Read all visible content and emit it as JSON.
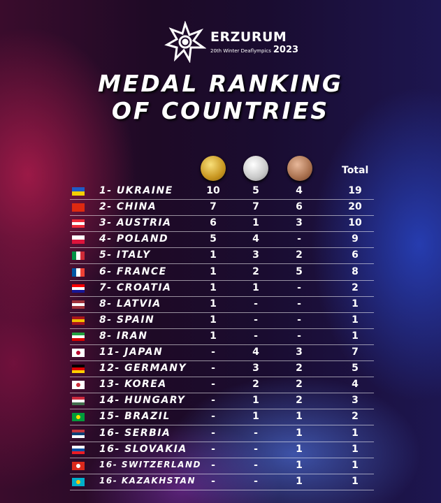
{
  "logo": {
    "name": "ERZURUM",
    "subtitle": "20th Winter Deaflympics",
    "year": "2023"
  },
  "title": {
    "line1": "MEDAL RANKING",
    "line2": "OF COUNTRIES"
  },
  "header": {
    "total": "Total",
    "medals": [
      "gold-medal-icon",
      "silver-medal-icon",
      "bronze-medal-icon"
    ]
  },
  "rows": [
    {
      "rank": "1- UKRAINE",
      "gold": "10",
      "silver": "5",
      "bronze": "4",
      "total": "19",
      "flag": [
        "#1e5bc6",
        "#f5d000"
      ]
    },
    {
      "rank": "2- CHINA",
      "gold": "7",
      "silver": "7",
      "bronze": "6",
      "total": "20",
      "flag": [
        "#de2910",
        "#de2910"
      ]
    },
    {
      "rank": "3- AUSTRIA",
      "gold": "6",
      "silver": "1",
      "bronze": "3",
      "total": "10",
      "flag": [
        "#ed2939",
        "#ffffff",
        "#ed2939"
      ]
    },
    {
      "rank": "4- POLAND",
      "gold": "5",
      "silver": "4",
      "bronze": "-",
      "total": "9",
      "flag": [
        "#ffffff",
        "#dc143c"
      ]
    },
    {
      "rank": "5- ITALY",
      "gold": "1",
      "silver": "3",
      "bronze": "2",
      "total": "6",
      "flag": [
        "#009246",
        "#ffffff",
        "#ce2b37"
      ],
      "vertical": true
    },
    {
      "rank": "6- FRANCE",
      "gold": "1",
      "silver": "2",
      "bronze": "5",
      "total": "8",
      "flag": [
        "#0055a4",
        "#ffffff",
        "#ef4135"
      ],
      "vertical": true
    },
    {
      "rank": "7- CROATIA",
      "gold": "1",
      "silver": "1",
      "bronze": "-",
      "total": "2",
      "flag": [
        "#ff0000",
        "#ffffff",
        "#171796"
      ]
    },
    {
      "rank": "8- LATVIA",
      "gold": "1",
      "silver": "-",
      "bronze": "-",
      "total": "1",
      "flag": [
        "#9e3039",
        "#ffffff",
        "#9e3039"
      ]
    },
    {
      "rank": "8- SPAIN",
      "gold": "1",
      "silver": "-",
      "bronze": "-",
      "total": "1",
      "flag": [
        "#aa151b",
        "#f1bf00",
        "#aa151b"
      ]
    },
    {
      "rank": "8- IRAN",
      "gold": "1",
      "silver": "-",
      "bronze": "-",
      "total": "1",
      "flag": [
        "#239f40",
        "#ffffff",
        "#da0000"
      ]
    },
    {
      "rank": "11- JAPAN",
      "gold": "-",
      "silver": "4",
      "bronze": "3",
      "total": "7",
      "flag": [
        "#ffffff",
        "#ffffff"
      ],
      "dot": "#bc002d"
    },
    {
      "rank": "12- GERMANY",
      "gold": "-",
      "silver": "3",
      "bronze": "2",
      "total": "5",
      "flag": [
        "#000000",
        "#dd0000",
        "#ffce00"
      ]
    },
    {
      "rank": "13- KOREA",
      "gold": "-",
      "silver": "2",
      "bronze": "2",
      "total": "4",
      "flag": [
        "#ffffff",
        "#ffffff"
      ],
      "dot": "#cd2e3a"
    },
    {
      "rank": "14- HUNGARY",
      "gold": "-",
      "silver": "1",
      "bronze": "2",
      "total": "3",
      "flag": [
        "#cd2a3e",
        "#ffffff",
        "#436f4d"
      ]
    },
    {
      "rank": "15- BRAZIL",
      "gold": "-",
      "silver": "1",
      "bronze": "1",
      "total": "2",
      "flag": [
        "#009c3b",
        "#009c3b"
      ],
      "dot": "#ffdf00"
    },
    {
      "rank": "16- SERBIA",
      "gold": "-",
      "silver": "-",
      "bronze": "1",
      "total": "1",
      "flag": [
        "#c6363c",
        "#0c4076",
        "#ffffff"
      ]
    },
    {
      "rank": "16- SLOVAKIA",
      "gold": "-",
      "silver": "-",
      "bronze": "1",
      "total": "1",
      "flag": [
        "#ffffff",
        "#0b4ea2",
        "#ee1c25"
      ]
    },
    {
      "rank": "16- SWITZERLAND",
      "gold": "-",
      "silver": "-",
      "bronze": "1",
      "total": "1",
      "flag": [
        "#da291c",
        "#da291c"
      ],
      "dot": "#ffffff"
    },
    {
      "rank": "16- KAZAKHSTAN",
      "gold": "-",
      "silver": "-",
      "bronze": "1",
      "total": "1",
      "flag": [
        "#00afca",
        "#00afca"
      ],
      "dot": "#fec50c"
    }
  ]
}
